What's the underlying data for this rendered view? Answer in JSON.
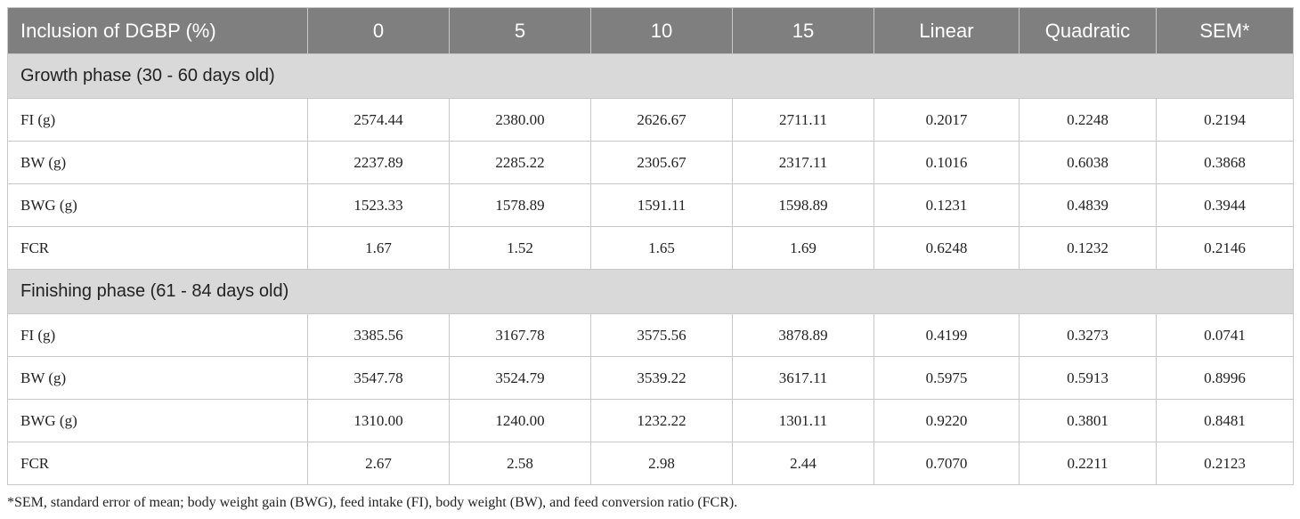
{
  "table": {
    "header": [
      "Inclusion of DGBP (%)",
      "0",
      "5",
      "10",
      "15",
      "Linear",
      "Quadratic",
      "SEM*"
    ],
    "sections": [
      {
        "title": "Growth phase (30 - 60 days old)",
        "rows": [
          [
            "FI (g)",
            "2574.44",
            "2380.00",
            "2626.67",
            "2711.11",
            "0.2017",
            "0.2248",
            "0.2194"
          ],
          [
            "BW (g)",
            "2237.89",
            "2285.22",
            "2305.67",
            "2317.11",
            "0.1016",
            "0.6038",
            "0.3868"
          ],
          [
            "BWG (g)",
            "1523.33",
            "1578.89",
            "1591.11",
            "1598.89",
            "0.1231",
            "0.4839",
            "0.3944"
          ],
          [
            "FCR",
            "1.67",
            "1.52",
            "1.65",
            "1.69",
            "0.6248",
            "0.1232",
            "0.2146"
          ]
        ]
      },
      {
        "title": "Finishing phase (61 - 84 days old)",
        "rows": [
          [
            "FI (g)",
            "3385.56",
            "3167.78",
            "3575.56",
            "3878.89",
            "0.4199",
            "0.3273",
            "0.0741"
          ],
          [
            "BW (g)",
            "3547.78",
            "3524.79",
            "3539.22",
            "3617.11",
            "0.5975",
            "0.5913",
            "0.8996"
          ],
          [
            "BWG (g)",
            "1310.00",
            "1240.00",
            "1232.22",
            "1301.11",
            "0.9220",
            "0.3801",
            "0.8481"
          ],
          [
            "FCR",
            "2.67",
            "2.58",
            "2.98",
            "2.44",
            "0.7070",
            "0.2211",
            "0.2123"
          ]
        ]
      }
    ],
    "footnote": "*SEM, standard error of mean; body weight gain (BWG), feed intake (FI), body weight (BW), and feed conversion ratio (FCR)."
  }
}
